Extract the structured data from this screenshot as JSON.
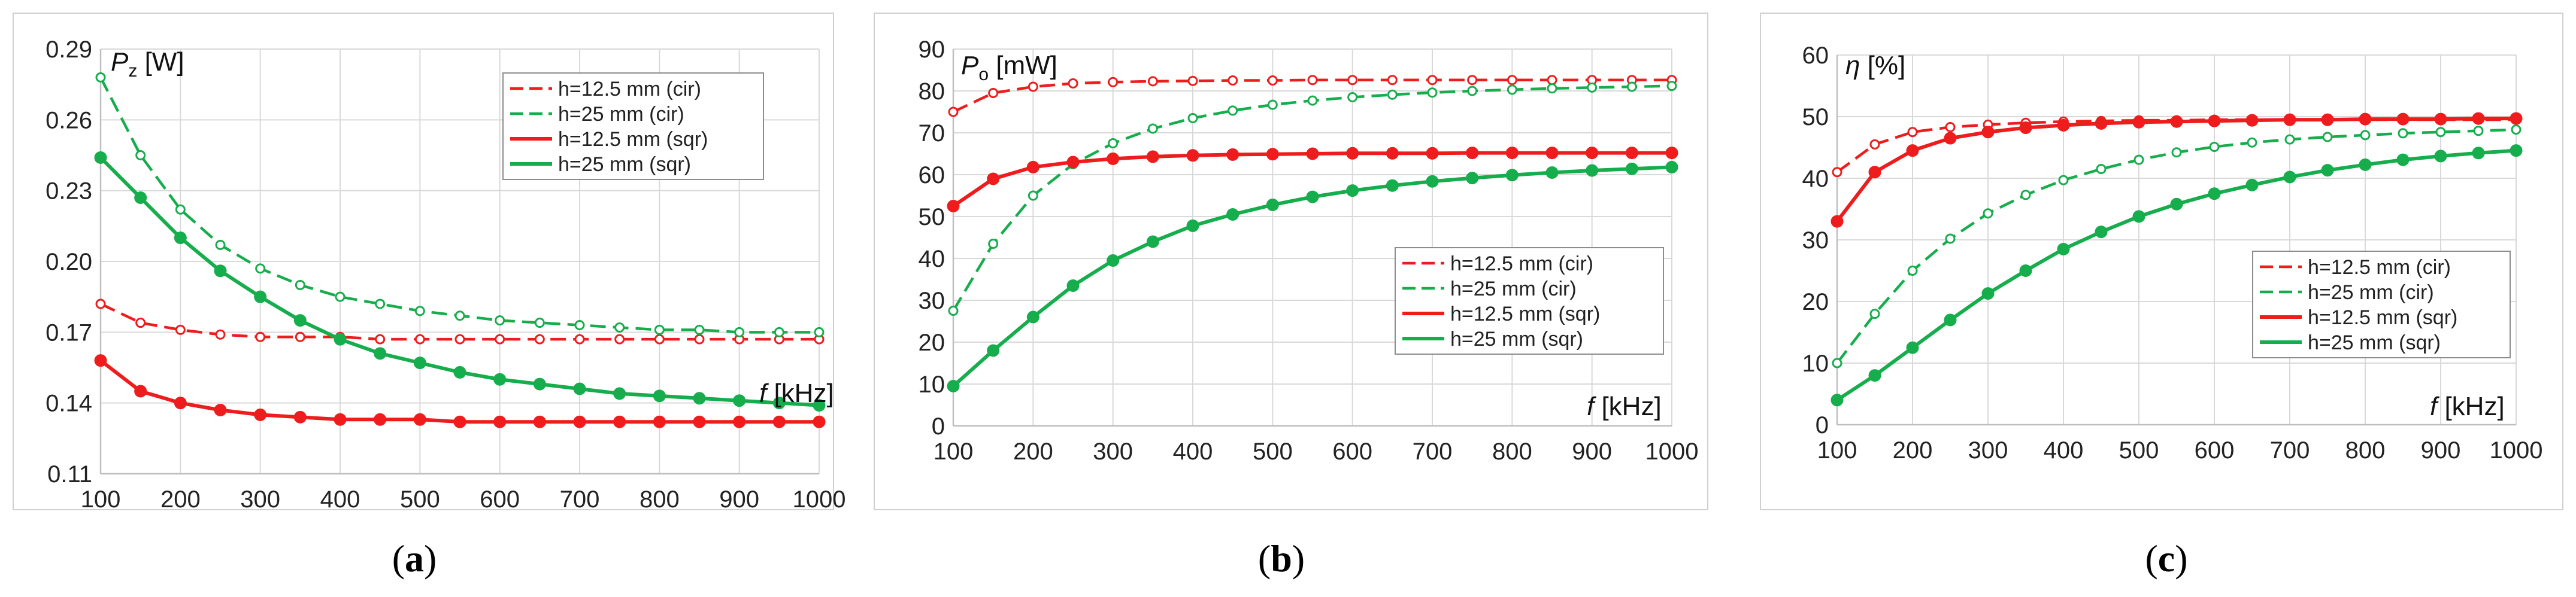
{
  "colors": {
    "red": "#ee1c1c",
    "green": "#16ad4c",
    "grid": "#d9d9d9",
    "frame": "#d0d0d0"
  },
  "chart_data": [
    {
      "type": "line",
      "caption": "a",
      "ylabel_symbol": "P",
      "ylabel_sub": "z",
      "ylabel_unit": " [W]",
      "xlabel_symbol": "f",
      "xlabel_unit": " [kHz]",
      "ylim": [
        0.11,
        0.29
      ],
      "yticks": [
        0.11,
        0.14,
        0.17,
        0.2,
        0.23,
        0.26,
        0.29
      ],
      "ytick_labels": [
        "0.11",
        "0.14",
        "0.17",
        "0.20",
        "0.23",
        "0.26",
        "0.29"
      ],
      "xlim": [
        100,
        1000
      ],
      "xticks": [
        100,
        200,
        300,
        400,
        500,
        600,
        700,
        800,
        900,
        1000
      ],
      "xtick_labels": [
        "100",
        "200",
        "300",
        "400",
        "500",
        "600",
        "700",
        "800",
        "900",
        "1000"
      ],
      "legend_position": "top-right",
      "x": [
        100,
        150,
        200,
        250,
        300,
        350,
        400,
        450,
        500,
        550,
        600,
        650,
        700,
        750,
        800,
        850,
        900,
        950,
        1000
      ],
      "series": [
        {
          "name": "h=12.5 mm (cir)",
          "color": "red",
          "dashed": true,
          "marker": "open",
          "values": [
            0.182,
            0.174,
            0.171,
            0.169,
            0.168,
            0.168,
            0.168,
            0.167,
            0.167,
            0.167,
            0.167,
            0.167,
            0.167,
            0.167,
            0.167,
            0.167,
            0.167,
            0.167,
            0.167
          ]
        },
        {
          "name": "h=25 mm (cir)",
          "color": "green",
          "dashed": true,
          "marker": "open",
          "values": [
            0.278,
            0.245,
            0.222,
            0.207,
            0.197,
            0.19,
            0.185,
            0.182,
            0.179,
            0.177,
            0.175,
            0.174,
            0.173,
            0.172,
            0.171,
            0.171,
            0.17,
            0.17,
            0.17
          ]
        },
        {
          "name": "h=12.5 mm (sqr)",
          "color": "red",
          "dashed": false,
          "marker": "filled",
          "values": [
            0.158,
            0.145,
            0.14,
            0.137,
            0.135,
            0.134,
            0.133,
            0.133,
            0.133,
            0.132,
            0.132,
            0.132,
            0.132,
            0.132,
            0.132,
            0.132,
            0.132,
            0.132,
            0.132
          ]
        },
        {
          "name": "h=25 mm (sqr)",
          "color": "green",
          "dashed": false,
          "marker": "filled",
          "values": [
            0.244,
            0.227,
            0.21,
            0.196,
            0.185,
            0.175,
            0.167,
            0.161,
            0.157,
            0.153,
            0.15,
            0.148,
            0.146,
            0.144,
            0.143,
            0.142,
            0.141,
            0.14,
            0.139
          ]
        }
      ]
    },
    {
      "type": "line",
      "caption": "b",
      "ylabel_symbol": "P",
      "ylabel_sub": "o",
      "ylabel_unit": " [mW]",
      "xlabel_symbol": "f",
      "xlabel_unit": " [kHz]",
      "ylim": [
        0,
        90
      ],
      "yticks": [
        0,
        10,
        20,
        30,
        40,
        50,
        60,
        70,
        80,
        90
      ],
      "ytick_labels": [
        "0",
        "10",
        "20",
        "30",
        "40",
        "50",
        "60",
        "70",
        "80",
        "90"
      ],
      "xlim": [
        100,
        1000
      ],
      "xticks": [
        100,
        200,
        300,
        400,
        500,
        600,
        700,
        800,
        900,
        1000
      ],
      "xtick_labels": [
        "100",
        "200",
        "300",
        "400",
        "500",
        "600",
        "700",
        "800",
        "900",
        "1000"
      ],
      "legend_position": "center-right",
      "x": [
        100,
        150,
        200,
        250,
        300,
        350,
        400,
        450,
        500,
        550,
        600,
        650,
        700,
        750,
        800,
        850,
        900,
        950,
        1000
      ],
      "series": [
        {
          "name": "h=12.5 mm (cir)",
          "color": "red",
          "dashed": true,
          "marker": "open",
          "values": [
            75,
            79.5,
            81,
            81.8,
            82.1,
            82.3,
            82.4,
            82.5,
            82.5,
            82.6,
            82.6,
            82.6,
            82.6,
            82.6,
            82.6,
            82.6,
            82.6,
            82.6,
            82.6
          ]
        },
        {
          "name": "h=25 mm (cir)",
          "color": "green",
          "dashed": true,
          "marker": "open",
          "values": [
            27.5,
            43.5,
            55,
            62.5,
            67.5,
            71,
            73.5,
            75.3,
            76.7,
            77.7,
            78.5,
            79.1,
            79.6,
            80,
            80.3,
            80.6,
            80.8,
            81,
            81.2
          ]
        },
        {
          "name": "h=12.5 mm (sqr)",
          "color": "red",
          "dashed": false,
          "marker": "filled",
          "values": [
            52.5,
            59,
            61.8,
            63,
            63.8,
            64.3,
            64.6,
            64.8,
            64.9,
            65,
            65.1,
            65.1,
            65.1,
            65.2,
            65.2,
            65.2,
            65.2,
            65.2,
            65.2
          ]
        },
        {
          "name": "h=25 mm (sqr)",
          "color": "green",
          "dashed": false,
          "marker": "filled",
          "values": [
            9.5,
            18,
            26,
            33.5,
            39.5,
            44,
            47.8,
            50.5,
            52.8,
            54.7,
            56.2,
            57.4,
            58.4,
            59.2,
            59.9,
            60.5,
            61,
            61.4,
            61.8
          ]
        }
      ]
    },
    {
      "type": "line",
      "caption": "c",
      "ylabel_symbol": "η",
      "ylabel_sub": "",
      "ylabel_unit": " [%]",
      "xlabel_symbol": "f",
      "xlabel_unit": " [kHz]",
      "ylim": [
        0,
        60
      ],
      "yticks": [
        0,
        10,
        20,
        30,
        40,
        50,
        60
      ],
      "ytick_labels": [
        "0",
        "10",
        "20",
        "30",
        "40",
        "50",
        "60"
      ],
      "xlim": [
        100,
        1000
      ],
      "xticks": [
        100,
        200,
        300,
        400,
        500,
        600,
        700,
        800,
        900,
        1000
      ],
      "xtick_labels": [
        "100",
        "200",
        "300",
        "400",
        "500",
        "600",
        "700",
        "800",
        "900",
        "1000"
      ],
      "legend_position": "center-right",
      "x": [
        100,
        150,
        200,
        250,
        300,
        350,
        400,
        450,
        500,
        550,
        600,
        650,
        700,
        750,
        800,
        850,
        900,
        950,
        1000
      ],
      "series": [
        {
          "name": "h=12.5 mm (cir)",
          "color": "red",
          "dashed": true,
          "marker": "open",
          "values": [
            41,
            45.5,
            47.5,
            48.3,
            48.7,
            49,
            49.2,
            49.3,
            49.4,
            49.4,
            49.5,
            49.5,
            49.5,
            49.5,
            49.5,
            49.5,
            49.5,
            49.5,
            49.5
          ]
        },
        {
          "name": "h=25 mm (cir)",
          "color": "green",
          "dashed": true,
          "marker": "open",
          "values": [
            10,
            18,
            25,
            30.2,
            34.3,
            37.3,
            39.7,
            41.5,
            43,
            44.2,
            45.1,
            45.8,
            46.3,
            46.7,
            47,
            47.3,
            47.5,
            47.7,
            47.9
          ]
        },
        {
          "name": "h=12.5 mm (sqr)",
          "color": "red",
          "dashed": false,
          "marker": "filled",
          "values": [
            33,
            41,
            44.5,
            46.5,
            47.5,
            48.2,
            48.6,
            48.9,
            49.1,
            49.2,
            49.3,
            49.4,
            49.5,
            49.5,
            49.6,
            49.6,
            49.6,
            49.7,
            49.7
          ]
        },
        {
          "name": "h=25 mm (sqr)",
          "color": "green",
          "dashed": false,
          "marker": "filled",
          "values": [
            4,
            8,
            12.5,
            17,
            21.3,
            25,
            28.5,
            31.3,
            33.8,
            35.8,
            37.5,
            38.9,
            40.2,
            41.3,
            42.2,
            43,
            43.6,
            44.1,
            44.5
          ]
        }
      ]
    }
  ]
}
